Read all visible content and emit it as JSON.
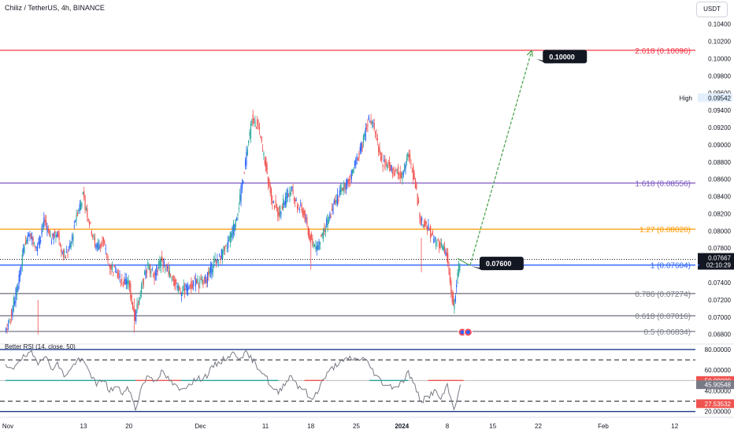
{
  "header": {
    "symbol_title": "Chiliz / TetherUS, 4h, BINANCE",
    "currency_button": "USDT",
    "rsi_indicator_label": "Better RSI (14, close, 50)"
  },
  "colors": {
    "up": "#26a69a",
    "down": "#ef5350",
    "blue_up": "#2962ff",
    "fib_2618": "#f23645",
    "fib_1618": "#7e57c2",
    "fib_127": "#ff9800",
    "fib_1": "#2962ff",
    "fib_gray": "#787b86",
    "arrow": "#43a047",
    "rsi_line": "#787b86",
    "rsi_band": "#1e3a8a"
  },
  "chart_data": [
    {
      "type": "candlestick",
      "title": "Chiliz / TetherUS, 4h, BINANCE",
      "y_axis_ticks": [
        "0.10400",
        "0.10200",
        "0.10000",
        "0.09800",
        "0.09600",
        "0.09400",
        "0.09200",
        "0.09000",
        "0.08800",
        "0.08600",
        "0.08400",
        "0.08200",
        "0.08000",
        "0.07800",
        "0.07400",
        "0.07200",
        "0.07000",
        "0.06800"
      ],
      "ylim": [
        0.0677,
        0.1057
      ],
      "x_axis_ticks": [
        "Nov",
        "13",
        "20",
        "Dec",
        "11",
        "18",
        "25",
        "2024",
        "8",
        "15",
        "22",
        "Feb",
        "12"
      ],
      "x_axis_days": [
        0,
        12,
        19,
        30,
        40,
        47,
        54,
        61,
        68,
        75,
        82,
        92,
        103
      ],
      "price_path": [
        [
          0,
          0.0683
        ],
        [
          1,
          0.0705
        ],
        [
          2,
          0.074
        ],
        [
          3,
          0.0785
        ],
        [
          4,
          0.0795
        ],
        [
          5,
          0.078
        ],
        [
          6,
          0.081
        ],
        [
          7,
          0.079
        ],
        [
          8,
          0.08
        ],
        [
          9,
          0.077
        ],
        [
          10,
          0.078
        ],
        [
          11,
          0.082
        ],
        [
          12,
          0.084
        ],
        [
          13,
          0.081
        ],
        [
          14,
          0.078
        ],
        [
          15,
          0.079
        ],
        [
          16,
          0.076
        ],
        [
          17,
          0.0755
        ],
        [
          18,
          0.074
        ],
        [
          19,
          0.074
        ],
        [
          20,
          0.07
        ],
        [
          21,
          0.0735
        ],
        [
          22,
          0.076
        ],
        [
          23,
          0.075
        ],
        [
          24,
          0.0765
        ],
        [
          25,
          0.0755
        ],
        [
          26,
          0.074
        ],
        [
          27,
          0.073
        ],
        [
          28,
          0.0733
        ],
        [
          29,
          0.074
        ],
        [
          30,
          0.074
        ],
        [
          31,
          0.0745
        ],
        [
          32,
          0.076
        ],
        [
          33,
          0.077
        ],
        [
          34,
          0.078
        ],
        [
          35,
          0.08
        ],
        [
          36,
          0.083
        ],
        [
          37,
          0.088
        ],
        [
          38,
          0.093
        ],
        [
          39,
          0.092
        ],
        [
          40,
          0.088
        ],
        [
          41,
          0.084
        ],
        [
          42,
          0.082
        ],
        [
          43,
          0.0835
        ],
        [
          44,
          0.085
        ],
        [
          45,
          0.083
        ],
        [
          46,
          0.082
        ],
        [
          47,
          0.079
        ],
        [
          48,
          0.078
        ],
        [
          49,
          0.08
        ],
        [
          50,
          0.082
        ],
        [
          51,
          0.0835
        ],
        [
          52,
          0.085
        ],
        [
          53,
          0.086
        ],
        [
          54,
          0.088
        ],
        [
          55,
          0.09
        ],
        [
          56,
          0.093
        ],
        [
          57,
          0.0915
        ],
        [
          58,
          0.088
        ],
        [
          59,
          0.0875
        ],
        [
          60,
          0.087
        ],
        [
          61,
          0.0865
        ],
        [
          62,
          0.089
        ],
        [
          63,
          0.086
        ],
        [
          64,
          0.081
        ],
        [
          65,
          0.0805
        ],
        [
          66,
          0.079
        ],
        [
          67,
          0.0785
        ],
        [
          68,
          0.077
        ],
        [
          69,
          0.071
        ],
        [
          70,
          0.0767
        ]
      ],
      "series": [
        {
          "name": "Chiliz / TetherUS",
          "last_value": "0.07667",
          "countdown": "02:10:29"
        }
      ],
      "high_marker": {
        "label": "High",
        "value": "0.09542"
      },
      "fib_levels": [
        {
          "label": "2.618 (0.10096)",
          "value": 0.10096,
          "color_key": "fib_2618",
          "span": "full"
        },
        {
          "label": "1.618 (0.08556)",
          "value": 0.08556,
          "color_key": "fib_1618",
          "span": "full"
        },
        {
          "label": "1.27 (0.08020)",
          "value": 0.0802,
          "color_key": "fib_127",
          "span": "full"
        },
        {
          "label": "1 (0.07604)",
          "value": 0.07604,
          "color_key": "fib_1",
          "span": "full"
        },
        {
          "label": "0.786 (0.07274)",
          "value": 0.07274,
          "color_key": "fib_gray",
          "span": "full"
        },
        {
          "label": "0.618 (0.07016)",
          "value": 0.07016,
          "color_key": "fib_gray",
          "span": "full"
        },
        {
          "label": "0.5 (0.06834)",
          "value": 0.06834,
          "color_key": "fib_gray",
          "span": "full"
        }
      ],
      "annotations": [
        {
          "label": "0.10000",
          "value": 0.1
        },
        {
          "label": "0.07600",
          "value": 0.076
        }
      ],
      "projection_arrow": {
        "from": [
          71.5,
          0.076
        ],
        "to": [
          81,
          0.10096
        ]
      },
      "grid": false
    },
    {
      "type": "line",
      "title": "Better RSI (14, close, 50)",
      "ylim": [
        19,
        83
      ],
      "y_axis_ticks": [
        "80.00000",
        "60.00000",
        "40.00000",
        "20.00000"
      ],
      "bands": [
        80,
        70,
        50,
        30,
        20
      ],
      "band_value_tags": [
        "50.00000",
        "45.90548",
        "27.53532"
      ],
      "rsi_path": [
        [
          0,
          63
        ],
        [
          1,
          60
        ],
        [
          2,
          70
        ],
        [
          3,
          73
        ],
        [
          4,
          76
        ],
        [
          5,
          68
        ],
        [
          6,
          75
        ],
        [
          7,
          62
        ],
        [
          8,
          66
        ],
        [
          9,
          55
        ],
        [
          10,
          60
        ],
        [
          11,
          70
        ],
        [
          12,
          68
        ],
        [
          13,
          58
        ],
        [
          14,
          45
        ],
        [
          15,
          52
        ],
        [
          16,
          40
        ],
        [
          17,
          44
        ],
        [
          18,
          38
        ],
        [
          19,
          42
        ],
        [
          20,
          22
        ],
        [
          21,
          45
        ],
        [
          22,
          55
        ],
        [
          23,
          50
        ],
        [
          24,
          58
        ],
        [
          25,
          52
        ],
        [
          26,
          45
        ],
        [
          27,
          40
        ],
        [
          28,
          46
        ],
        [
          29,
          50
        ],
        [
          30,
          52
        ],
        [
          31,
          55
        ],
        [
          32,
          64
        ],
        [
          33,
          68
        ],
        [
          34,
          72
        ],
        [
          35,
          76
        ],
        [
          36,
          73
        ],
        [
          37,
          76
        ],
        [
          38,
          70
        ],
        [
          39,
          62
        ],
        [
          40,
          55
        ],
        [
          41,
          42
        ],
        [
          42,
          38
        ],
        [
          43,
          48
        ],
        [
          44,
          55
        ],
        [
          45,
          45
        ],
        [
          46,
          42
        ],
        [
          47,
          30
        ],
        [
          48,
          40
        ],
        [
          49,
          52
        ],
        [
          50,
          60
        ],
        [
          51,
          66
        ],
        [
          52,
          68
        ],
        [
          53,
          72
        ],
        [
          54,
          70
        ],
        [
          55,
          72
        ],
        [
          56,
          65
        ],
        [
          57,
          55
        ],
        [
          58,
          48
        ],
        [
          59,
          45
        ],
        [
          60,
          44
        ],
        [
          61,
          48
        ],
        [
          62,
          58
        ],
        [
          63,
          44
        ],
        [
          64,
          30
        ],
        [
          65,
          34
        ],
        [
          66,
          40
        ],
        [
          67,
          32
        ],
        [
          68,
          44
        ],
        [
          69,
          22
        ],
        [
          70,
          46
        ]
      ]
    }
  ]
}
